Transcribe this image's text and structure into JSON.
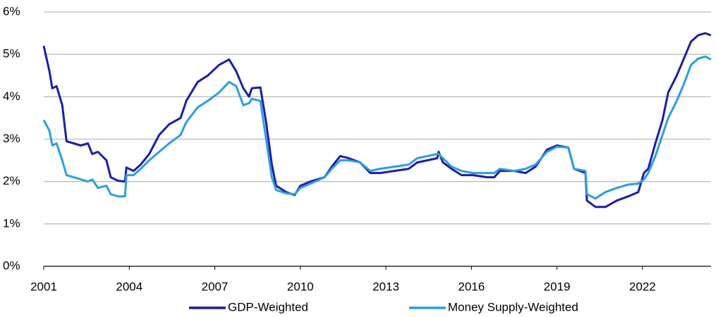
{
  "chart_data": {
    "type": "line",
    "x": [
      2001.0,
      2001.2,
      2001.3,
      2001.45,
      2001.65,
      2001.8,
      2002.05,
      2002.3,
      2002.55,
      2002.7,
      2002.9,
      2003.2,
      2003.35,
      2003.6,
      2003.85,
      2003.9,
      2004.15,
      2004.4,
      2004.7,
      2005.05,
      2005.4,
      2005.8,
      2006.0,
      2006.4,
      2006.75,
      2007.15,
      2007.5,
      2007.75,
      2008.0,
      2008.2,
      2008.3,
      2008.6,
      2008.8,
      2009.0,
      2009.15,
      2009.5,
      2009.8,
      2010.0,
      2010.35,
      2010.85,
      2011.1,
      2011.4,
      2011.7,
      2012.1,
      2012.45,
      2012.8,
      2013.3,
      2013.8,
      2014.1,
      2014.45,
      2014.8,
      2014.85,
      2015.0,
      2015.3,
      2015.65,
      2016.05,
      2016.55,
      2016.8,
      2017.0,
      2017.5,
      2017.9,
      2018.25,
      2018.65,
      2019.0,
      2019.4,
      2019.6,
      2020.0,
      2020.05,
      2020.35,
      2020.7,
      2021.1,
      2021.5,
      2021.85,
      2022.05,
      2022.2,
      2022.45,
      2022.7,
      2022.9,
      2023.2,
      2023.45,
      2023.7,
      2023.95,
      2024.2,
      2024.4
    ],
    "series": [
      {
        "name": "GDP-Weighted",
        "color": "#1c1cae",
        "values": [
          5.2,
          4.6,
          4.2,
          4.25,
          3.8,
          2.95,
          2.9,
          2.85,
          2.9,
          2.65,
          2.7,
          2.5,
          2.1,
          2.02,
          2.0,
          2.33,
          2.25,
          2.4,
          2.65,
          3.1,
          3.35,
          3.5,
          3.9,
          4.35,
          4.5,
          4.75,
          4.88,
          4.6,
          4.2,
          4.0,
          4.2,
          4.22,
          3.4,
          2.4,
          1.9,
          1.75,
          1.68,
          1.9,
          2.0,
          2.1,
          2.35,
          2.6,
          2.55,
          2.45,
          2.2,
          2.2,
          2.25,
          2.3,
          2.45,
          2.5,
          2.55,
          2.7,
          2.45,
          2.3,
          2.15,
          2.15,
          2.1,
          2.1,
          2.25,
          2.25,
          2.2,
          2.35,
          2.75,
          2.85,
          2.8,
          2.3,
          2.2,
          1.55,
          1.4,
          1.4,
          1.55,
          1.65,
          1.75,
          2.2,
          2.3,
          2.9,
          3.45,
          4.1,
          4.5,
          4.9,
          5.3,
          5.45,
          5.5,
          5.45
        ]
      },
      {
        "name": "Money Supply-Weighted",
        "color": "#26a0e6",
        "values": [
          3.45,
          3.2,
          2.85,
          2.9,
          2.5,
          2.15,
          2.1,
          2.05,
          2.0,
          2.05,
          1.85,
          1.9,
          1.7,
          1.65,
          1.65,
          2.15,
          2.15,
          2.3,
          2.5,
          2.7,
          2.9,
          3.1,
          3.4,
          3.75,
          3.9,
          4.1,
          4.35,
          4.25,
          3.8,
          3.85,
          3.95,
          3.9,
          3.0,
          2.1,
          1.8,
          1.72,
          1.7,
          1.85,
          1.95,
          2.1,
          2.3,
          2.5,
          2.5,
          2.45,
          2.25,
          2.3,
          2.35,
          2.4,
          2.55,
          2.6,
          2.65,
          2.65,
          2.55,
          2.35,
          2.25,
          2.2,
          2.2,
          2.2,
          2.3,
          2.25,
          2.3,
          2.4,
          2.7,
          2.82,
          2.8,
          2.3,
          2.25,
          1.7,
          1.6,
          1.75,
          1.85,
          1.93,
          1.95,
          2.05,
          2.2,
          2.6,
          3.1,
          3.5,
          3.9,
          4.3,
          4.75,
          4.9,
          4.95,
          4.88
        ]
      }
    ],
    "xlim": [
      2001,
      2024.4
    ],
    "xticks": [
      2001,
      2004,
      2007,
      2010,
      2013,
      2016,
      2019,
      2022
    ],
    "ylim": [
      0,
      6
    ],
    "yticks": [
      {
        "value": 0,
        "label": "0%"
      },
      {
        "value": 1,
        "label": "1%"
      },
      {
        "value": 2,
        "label": "2%"
      },
      {
        "value": 3,
        "label": "3%"
      },
      {
        "value": 4,
        "label": "4%"
      },
      {
        "value": 5,
        "label": "5%"
      },
      {
        "value": 6,
        "label": "6%"
      }
    ],
    "grid": true,
    "legend": "bottom"
  }
}
